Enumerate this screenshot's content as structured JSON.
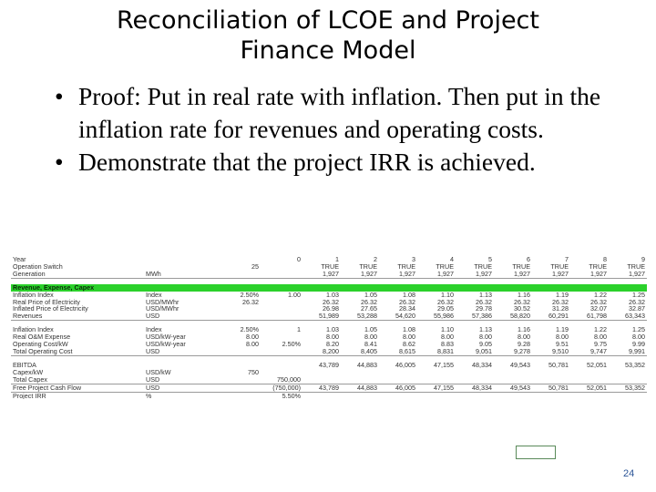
{
  "slide": {
    "title_line1": "Reconciliation of LCOE and Project",
    "title_line2": "Finance Model",
    "bullets": [
      "Proof: Put in real rate with inflation.  Then put in the inflation rate for revenues and operating costs.",
      "Demonstrate that the project IRR is achieved."
    ],
    "bullet_glyph": "•",
    "page_number": "24"
  },
  "sheet": {
    "rows": [
      {
        "type": "data",
        "cells": [
          "Year",
          "",
          "",
          "0",
          "1",
          "2",
          "3",
          "4",
          "5",
          "6",
          "7",
          "8",
          "9"
        ]
      },
      {
        "type": "data",
        "cells": [
          "Operation Switch",
          "",
          "25",
          "",
          "TRUE",
          "TRUE",
          "TRUE",
          "TRUE",
          "TRUE",
          "TRUE",
          "TRUE",
          "TRUE",
          "TRUE"
        ]
      },
      {
        "type": "data",
        "underline": true,
        "cells": [
          "Generation",
          "MWh",
          "",
          "",
          "1,927",
          "1,927",
          "1,927",
          "1,927",
          "1,927",
          "1,927",
          "1,927",
          "1,927",
          "1,927"
        ]
      },
      {
        "type": "spacer"
      },
      {
        "type": "section",
        "label": "Revenue, Expense, Capex"
      },
      {
        "type": "data",
        "cells": [
          "Inflation Index",
          "Index",
          "2.50%",
          "1.00",
          "1.03",
          "1.05",
          "1.08",
          "1.10",
          "1.13",
          "1.16",
          "1.19",
          "1.22",
          "1.25"
        ]
      },
      {
        "type": "data",
        "cells": [
          "Real Price of Electricity",
          "USD/MWhr",
          "26.32",
          "",
          "26.32",
          "26.32",
          "26.32",
          "26.32",
          "26.32",
          "26.32",
          "26.32",
          "26.32",
          "26.32"
        ]
      },
      {
        "type": "data",
        "cells": [
          "Inflated Price of Electricity",
          "USD/MWhr",
          "",
          "",
          "26.98",
          "27.65",
          "28.34",
          "29.05",
          "29.78",
          "30.52",
          "31.28",
          "32.07",
          "32.87"
        ]
      },
      {
        "type": "data",
        "underline": true,
        "cells": [
          "Revenues",
          "USD",
          "",
          "",
          "51,989",
          "53,288",
          "54,620",
          "55,986",
          "57,386",
          "58,820",
          "60,291",
          "61,798",
          "63,343"
        ]
      },
      {
        "type": "spacer"
      },
      {
        "type": "data",
        "cells": [
          "Inflation Index",
          "Index",
          "2.50%",
          "1",
          "1.03",
          "1.05",
          "1.08",
          "1.10",
          "1.13",
          "1.16",
          "1.19",
          "1.22",
          "1.25"
        ]
      },
      {
        "type": "data",
        "cells": [
          "Real O&M Expense",
          "USD/kW-year",
          "8.00",
          "",
          "8.00",
          "8.00",
          "8.00",
          "8.00",
          "8.00",
          "8.00",
          "8.00",
          "8.00",
          "8.00"
        ]
      },
      {
        "type": "data",
        "cells": [
          "Operating Cost/kW",
          "USD/kW-year",
          "8.00",
          "2.50%",
          "8.20",
          "8.41",
          "8.62",
          "8.83",
          "9.05",
          "9.28",
          "9.51",
          "9.75",
          "9.99"
        ]
      },
      {
        "type": "data",
        "underline": true,
        "cells": [
          "Total Operating Cost",
          "USD",
          "",
          "",
          "8,200",
          "8,405",
          "8,615",
          "8,831",
          "9,051",
          "9,278",
          "9,510",
          "9,747",
          "9,991"
        ]
      },
      {
        "type": "spacer"
      },
      {
        "type": "data",
        "cells": [
          "EBITDA",
          "",
          "",
          "",
          "43,789",
          "44,883",
          "46,005",
          "47,155",
          "48,334",
          "49,543",
          "50,781",
          "52,051",
          "53,352"
        ]
      },
      {
        "type": "data",
        "cells": [
          "Capex/kW",
          "USD/kW",
          "750",
          "",
          "",
          "",
          "",
          "",
          "",
          "",
          "",
          "",
          ""
        ]
      },
      {
        "type": "data",
        "underline": true,
        "cells": [
          "Total Capex",
          "USD",
          "",
          "750,000",
          "",
          "",
          "",
          "",
          "",
          "",
          "",
          "",
          ""
        ]
      },
      {
        "type": "data",
        "underline": true,
        "cells": [
          " Free Project Cash Flow",
          "USD",
          "",
          "(750,000)",
          "43,789",
          "44,883",
          "46,005",
          "47,155",
          "48,334",
          "49,543",
          "50,781",
          "52,051",
          "53,352"
        ]
      },
      {
        "type": "data",
        "cells": [
          "Project IRR",
          "%",
          "",
          "5.50%",
          "",
          "",
          "",
          "",
          "",
          "",
          "",
          "",
          ""
        ]
      }
    ]
  }
}
